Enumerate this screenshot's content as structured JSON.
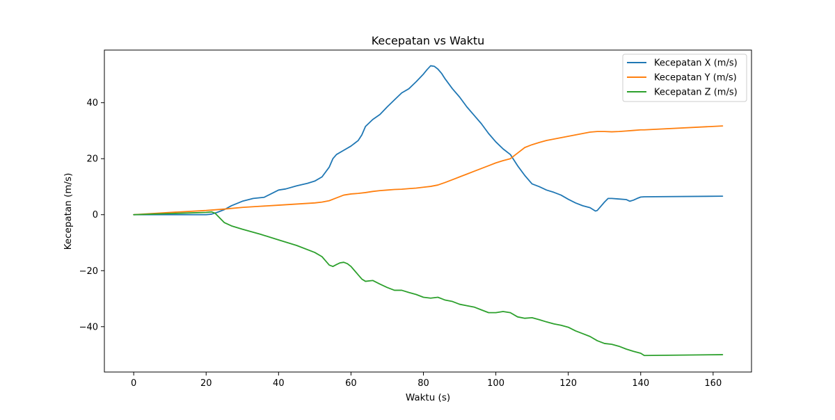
{
  "chart_data": {
    "type": "line",
    "title": "Kecepatan vs Waktu",
    "xlabel": "Waktu (s)",
    "ylabel": "Kecepatan (m/s)",
    "xlim": [
      -8.1,
      170.6
    ],
    "ylim": [
      -56.2,
      58.8
    ],
    "xticks": [
      0,
      20,
      40,
      60,
      80,
      100,
      120,
      140,
      160
    ],
    "xtick_labels": [
      "0",
      "20",
      "40",
      "60",
      "80",
      "100",
      "120",
      "140",
      "160"
    ],
    "yticks": [
      -40,
      -20,
      0,
      20,
      40
    ],
    "ytick_labels": [
      "−40",
      "−20",
      "0",
      "20",
      "40"
    ],
    "grid": false,
    "legend_position": "top-right",
    "series": [
      {
        "name": "Kecepatan X (m/s)",
        "color": "#1f77b4",
        "x": [
          0,
          5,
          10,
          15,
          20,
          21.5,
          23,
          25,
          27,
          30,
          33,
          36,
          38,
          40,
          42,
          45,
          48,
          50,
          52,
          54,
          55,
          56,
          58,
          60,
          62,
          63,
          64,
          66,
          68,
          70,
          72,
          74,
          76,
          78,
          80,
          81,
          82,
          83,
          84,
          85,
          86,
          88,
          90,
          92,
          94,
          96,
          98,
          100,
          102,
          104,
          106,
          108,
          110,
          112,
          114,
          116,
          118,
          120,
          122,
          124,
          126,
          127.5,
          128,
          129,
          130,
          131,
          132,
          134,
          136,
          137,
          138,
          139,
          140,
          141,
          162.6
        ],
        "y": [
          0,
          0,
          0,
          0,
          0,
          0.2,
          0.8,
          1.8,
          3.2,
          4.8,
          5.8,
          6.2,
          7.5,
          8.8,
          9.2,
          10.3,
          11.2,
          12.0,
          13.5,
          17.0,
          20.0,
          21.5,
          23.0,
          24.5,
          26.5,
          28.5,
          31.5,
          34.0,
          35.8,
          38.5,
          41.0,
          43.5,
          45.0,
          47.5,
          50.2,
          51.8,
          53.2,
          53.0,
          52.0,
          50.5,
          48.5,
          45.0,
          42.0,
          38.5,
          35.5,
          32.5,
          29.0,
          26.0,
          23.5,
          21.5,
          17.5,
          14.0,
          11.0,
          10.0,
          8.8,
          8.0,
          7.0,
          5.5,
          4.2,
          3.2,
          2.5,
          1.3,
          1.5,
          3.0,
          4.5,
          5.8,
          5.8,
          5.6,
          5.4,
          4.8,
          5.2,
          5.8,
          6.3,
          6.4,
          6.6
        ]
      },
      {
        "name": "Kecepatan Y (m/s)",
        "color": "#ff7f0e",
        "x": [
          0,
          10,
          20,
          25,
          30,
          35,
          40,
          45,
          50,
          52,
          54,
          56,
          58,
          60,
          62,
          64,
          66,
          68,
          70,
          72,
          74,
          76,
          78,
          80,
          82,
          84,
          86,
          88,
          90,
          92,
          94,
          96,
          98,
          100,
          102,
          104,
          106,
          108,
          110,
          112,
          114,
          116,
          118,
          120,
          122,
          124,
          126,
          128,
          130,
          132,
          134,
          136,
          138,
          140,
          141,
          162.6
        ],
        "y": [
          0,
          0.8,
          1.5,
          2.0,
          2.6,
          3.0,
          3.4,
          3.8,
          4.2,
          4.5,
          5.0,
          6.0,
          7.0,
          7.4,
          7.6,
          7.9,
          8.3,
          8.6,
          8.8,
          9.0,
          9.1,
          9.3,
          9.5,
          9.8,
          10.1,
          10.6,
          11.5,
          12.5,
          13.5,
          14.5,
          15.5,
          16.5,
          17.5,
          18.5,
          19.3,
          20.0,
          22.0,
          24.0,
          25.0,
          25.8,
          26.5,
          27.0,
          27.5,
          28.0,
          28.5,
          29.0,
          29.5,
          29.7,
          29.7,
          29.6,
          29.7,
          29.9,
          30.1,
          30.3,
          30.3,
          31.7
        ]
      },
      {
        "name": "Kecepatan Z (m/s)",
        "color": "#2ca02c",
        "x": [
          0,
          5,
          10,
          15,
          20,
          21.5,
          22.5,
          24,
          25,
          27,
          30,
          35,
          40,
          45,
          50,
          52,
          53,
          54,
          55,
          56,
          57,
          58,
          59,
          60,
          61,
          62,
          63,
          64,
          66,
          68,
          70,
          72,
          74,
          76,
          78,
          80,
          82,
          84,
          86,
          88,
          90,
          92,
          94,
          96,
          98,
          100,
          102,
          104,
          106,
          108,
          110,
          112,
          114,
          116,
          118,
          120,
          122,
          124,
          126,
          128,
          130,
          132,
          134,
          136,
          138,
          140,
          141,
          162.6
        ],
        "y": [
          0,
          0.2,
          0.4,
          0.6,
          0.8,
          1.0,
          0.5,
          -1.5,
          -2.8,
          -4.0,
          -5.2,
          -7.0,
          -9.0,
          -11.0,
          -13.5,
          -15.0,
          -16.5,
          -18.0,
          -18.5,
          -17.8,
          -17.2,
          -17.0,
          -17.5,
          -18.5,
          -20.0,
          -21.5,
          -23.0,
          -23.8,
          -23.5,
          -24.8,
          -26.0,
          -27.0,
          -27.0,
          -27.8,
          -28.5,
          -29.5,
          -29.8,
          -29.5,
          -30.5,
          -31.0,
          -32.0,
          -32.5,
          -33.0,
          -34.0,
          -35.0,
          -35.0,
          -34.6,
          -35.0,
          -36.5,
          -37.0,
          -36.8,
          -37.5,
          -38.3,
          -39.0,
          -39.5,
          -40.2,
          -41.5,
          -42.5,
          -43.5,
          -45.0,
          -46.0,
          -46.3,
          -47.0,
          -48.0,
          -48.8,
          -49.5,
          -50.3,
          -50.0
        ]
      }
    ]
  }
}
